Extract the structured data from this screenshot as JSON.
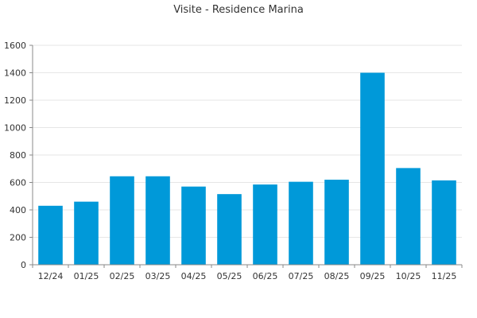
{
  "chart_data": {
    "type": "bar",
    "title": "Visite - Residence Marina",
    "categories": [
      "12/24",
      "01/25",
      "02/25",
      "03/25",
      "04/25",
      "05/25",
      "06/25",
      "07/25",
      "08/25",
      "09/25",
      "10/25",
      "11/25"
    ],
    "values": [
      430,
      460,
      645,
      645,
      570,
      515,
      585,
      605,
      620,
      1400,
      705,
      615
    ],
    "xlabel": "",
    "ylabel": "",
    "ylim": [
      0,
      1600
    ],
    "yticks": [
      "0",
      "200",
      "400",
      "600",
      "800",
      "1000",
      "1200",
      "1400",
      "1600"
    ],
    "grid": true,
    "bar_color": "#0099d9"
  }
}
